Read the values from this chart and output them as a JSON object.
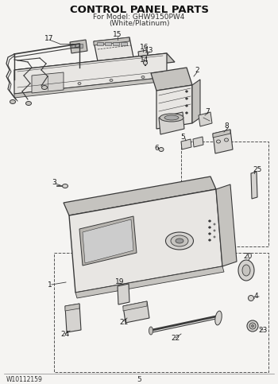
{
  "title": "CONTROL PANEL PARTS",
  "subtitle1": "For Model: GHW9150PW4",
  "subtitle2": "(White/Platinum)",
  "bg_color": "#f5f4f2",
  "footer_left": "W10112159",
  "footer_center": "5",
  "lc": "#3a3a3a",
  "dc": "#555555",
  "fc_panel": "#e8e6e3",
  "fc_dark": "#c5c3bf",
  "fc_mid": "#d5d3d0",
  "title_fontsize": 9.5,
  "subtitle_fontsize": 6.5,
  "label_fontsize": 6.5
}
